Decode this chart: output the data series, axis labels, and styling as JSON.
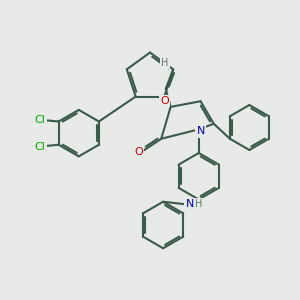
{
  "bg_color": "#e8eae8",
  "bond_color": "#3a5a4a",
  "bond_width": 1.5,
  "dbo": 0.055,
  "atom_colors": {
    "O": "#cc0000",
    "N": "#0000bb",
    "Cl": "#00aa00",
    "H": "#5a7a6a"
  },
  "font_size": 7
}
